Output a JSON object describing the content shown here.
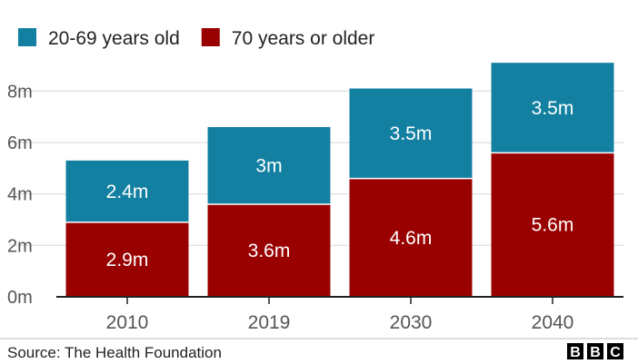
{
  "chart_data": {
    "type": "bar",
    "stacked": true,
    "categories": [
      "2010",
      "2019",
      "2030",
      "2040"
    ],
    "series": [
      {
        "name": "20-69 years old",
        "color": "#1380A1",
        "values": [
          2.4,
          3.0,
          3.5,
          3.5
        ],
        "labels": [
          "2.4m",
          "3m",
          "3.5m",
          "3.5m"
        ]
      },
      {
        "name": "70 years or older",
        "color": "#990000",
        "values": [
          2.9,
          3.6,
          4.6,
          5.6
        ],
        "labels": [
          "2.9m",
          "3.6m",
          "4.6m",
          "5.6m"
        ]
      }
    ],
    "stack_order": [
      1,
      0
    ],
    "legend_order": [
      0,
      1
    ],
    "legend_position": "top-left",
    "ylim": [
      0,
      9
    ],
    "yticks": [
      0,
      2,
      4,
      6,
      8
    ],
    "ytick_labels": [
      "0m",
      "2m",
      "4m",
      "6m",
      "8m"
    ],
    "grid": true,
    "gridline_color": "#dddddd",
    "axis_color": "#222222",
    "title": "",
    "xlabel": "",
    "ylabel": ""
  },
  "footer": {
    "source": "Source: The Health Foundation",
    "logo_letters": [
      "B",
      "B",
      "C"
    ]
  }
}
